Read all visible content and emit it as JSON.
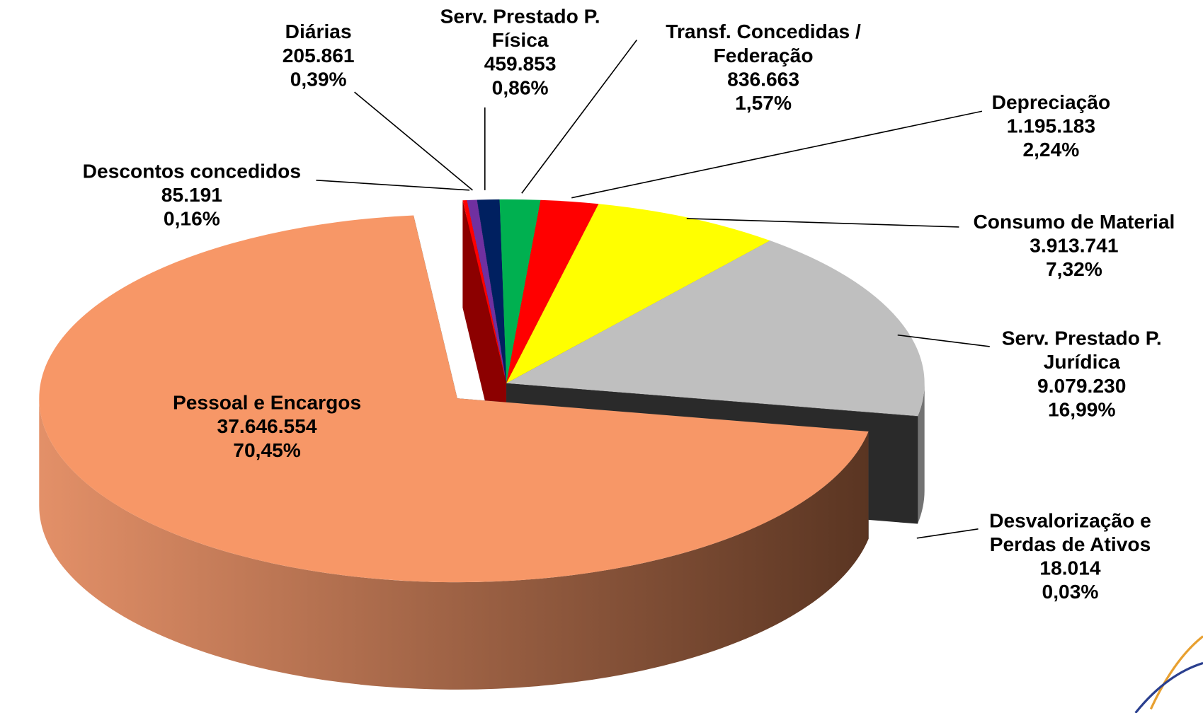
{
  "chart_data": {
    "type": "pie",
    "categories": [
      "Descontos concedidos",
      "Diárias",
      "Serv. Prestado P. Física",
      "Transf. Concedidas / Federação",
      "Depreciação",
      "Consumo de Material",
      "Serv. Prestado P. Jurídica",
      "Desvalorização e Perdas de Ativos",
      "Pessoal e Encargos"
    ],
    "values": [
      85191,
      205861,
      459853,
      836663,
      1195183,
      3913741,
      9079230,
      18014,
      37646554
    ],
    "value_labels": [
      "85.191",
      "205.861",
      "459.853",
      "836.663",
      "1.195.183",
      "3.913.741",
      "9.079.230",
      "18.014",
      "37.646.554"
    ],
    "percents": [
      0.16,
      0.39,
      0.86,
      1.57,
      2.24,
      7.32,
      16.99,
      0.03,
      70.45
    ],
    "percent_labels": [
      "0,16%",
      "0,39%",
      "0,86%",
      "1,57%",
      "2,24%",
      "7,32%",
      "16,99%",
      "0,03%",
      "70,45%"
    ],
    "colors": [
      "#ff0000",
      "#7030a0",
      "#002060",
      "#00b050",
      "#ff0000",
      "#ffff00",
      "#bfbfbf",
      "#4d4d4d",
      "#f79767"
    ],
    "exploded": "Pessoal e Encargos"
  }
}
